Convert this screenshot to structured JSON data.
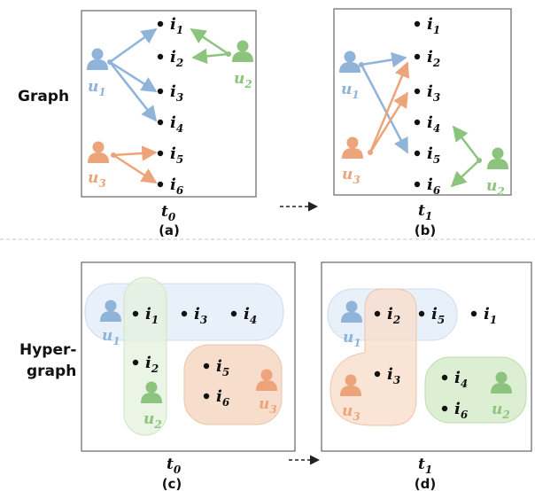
{
  "row_labels": {
    "graph": "Graph",
    "hypergraph_line1": "Hyper-",
    "hypergraph_line2": "graph"
  },
  "items": {
    "i1": "i",
    "i2": "i",
    "i3": "i",
    "i4": "i",
    "i5": "i",
    "i6": "i"
  },
  "subscripts": {
    "s1": "1",
    "s2": "2",
    "s3": "3",
    "s4": "4",
    "s5": "5",
    "s6": "6",
    "s0": "0"
  },
  "users": {
    "u": "u"
  },
  "times": {
    "t": "t"
  },
  "panel_captions": {
    "a": "(a)",
    "b": "(b)",
    "c": "(c)",
    "d": "(d)"
  },
  "colors": {
    "blue": "#8fb3d9",
    "green": "#8cc47d",
    "orange": "#eea47a",
    "blue_fill": "#e6eef8",
    "green_fill": "#e4f2dc",
    "orange_fill": "#f7ddcc",
    "frame": "#666666",
    "divider": "#c8c8c8"
  }
}
